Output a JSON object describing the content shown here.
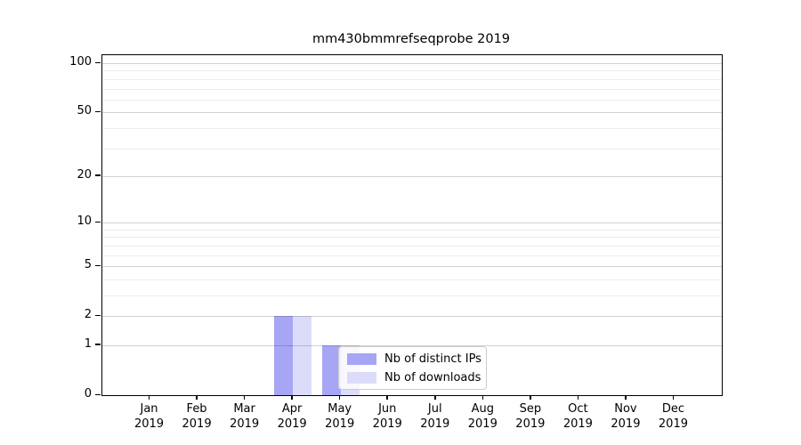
{
  "title": "mm430bmmrefseqprobe 2019",
  "chart_data": {
    "type": "bar",
    "title": "mm430bmmrefseqprobe 2019",
    "categories": [
      "Jan",
      "Feb",
      "Mar",
      "Apr",
      "May",
      "Jun",
      "Jul",
      "Aug",
      "Sep",
      "Oct",
      "Nov",
      "Dec"
    ],
    "year_label": "2019",
    "series": [
      {
        "name": "Nb of distinct IPs",
        "color": "#a6a6f5",
        "values": [
          0,
          0,
          0,
          2,
          1,
          0,
          0,
          0,
          0,
          0,
          0,
          0
        ]
      },
      {
        "name": "Nb of downloads",
        "color": "#dcdcfa",
        "values": [
          0,
          0,
          0,
          2,
          1,
          0,
          0,
          0,
          0,
          0,
          0,
          0
        ]
      }
    ],
    "xlabel": "",
    "ylabel": "",
    "yscale": "log1p",
    "ylim": [
      0,
      112
    ],
    "yticks_major": [
      0,
      1,
      2,
      5,
      10,
      20,
      50,
      100
    ],
    "yticks_minor": [
      3,
      4,
      6,
      7,
      8,
      9,
      30,
      40,
      60,
      70,
      80,
      90
    ],
    "grid": "horizontal",
    "legend_position": "lower-center"
  }
}
